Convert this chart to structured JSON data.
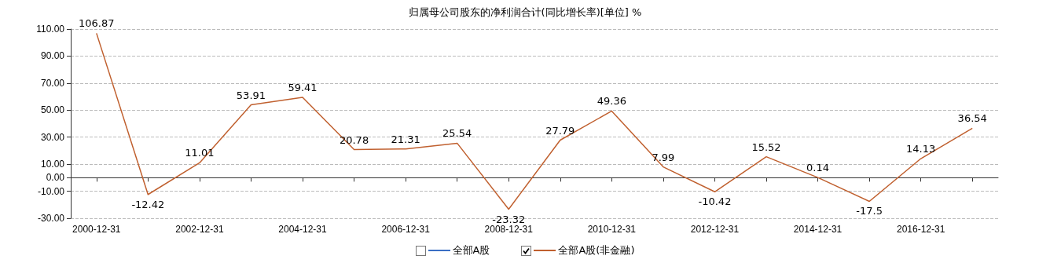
{
  "chart_data": {
    "type": "line",
    "title": "归属母公司股东的净利润合计(同比增长率)[单位] %",
    "categories": [
      "2000-12-31",
      null,
      "2002-12-31",
      null,
      "2004-12-31",
      null,
      "2006-12-31",
      null,
      "2008-12-31",
      null,
      "2010-12-31",
      null,
      "2012-12-31",
      null,
      "2014-12-31",
      null,
      "2016-12-31",
      null
    ],
    "series": [
      {
        "name": "全部A股",
        "color": "#3a6fc4",
        "values": [
          null,
          null,
          null,
          null,
          null,
          null,
          null,
          null,
          null,
          null,
          null,
          null,
          null,
          null,
          null,
          null,
          null,
          null
        ]
      },
      {
        "name": "全部A股(非金融)",
        "color": "#c0602f",
        "values": [
          106.87,
          -12.42,
          11.01,
          53.91,
          59.41,
          20.78,
          21.31,
          25.54,
          -23.32,
          27.79,
          49.36,
          7.99,
          -10.42,
          15.52,
          0.14,
          -17.5,
          14.13,
          36.54
        ]
      }
    ],
    "ylim": [
      -30,
      110
    ],
    "yticks": [
      {
        "value": -30,
        "label": "-30.00"
      },
      {
        "value": -10,
        "label": "-10.00"
      },
      {
        "value": 0,
        "label": "0.00"
      },
      {
        "value": 10,
        "label": "10.00"
      },
      {
        "value": 30,
        "label": "30.00"
      },
      {
        "value": 50,
        "label": "50.00"
      },
      {
        "value": 70,
        "label": "70.00"
      },
      {
        "value": 90,
        "label": "90.00"
      },
      {
        "value": 110,
        "label": "110.00"
      }
    ],
    "grid": "y",
    "legend": "bottom",
    "data_labels": true,
    "marker": "none",
    "line_style": "solid"
  }
}
